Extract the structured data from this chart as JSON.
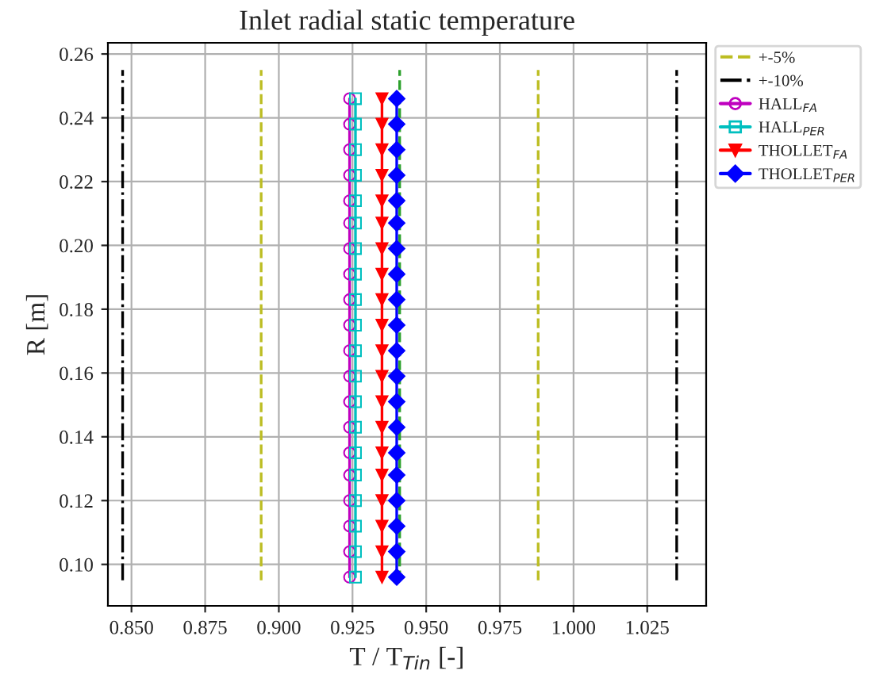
{
  "chart_data": {
    "type": "line",
    "title": "Inlet radial static temperature",
    "xlabel": "T / T$_{Tin}$ [-]",
    "ylabel": "R [m]",
    "xlim": [
      0.842,
      1.045
    ],
    "xticks": [
      {
        "value": 0.85,
        "label": "0.850"
      },
      {
        "value": 0.875,
        "label": "0.875"
      },
      {
        "value": 0.9,
        "label": "0.900"
      },
      {
        "value": 0.925,
        "label": "0.925"
      },
      {
        "value": 0.95,
        "label": "0.950"
      },
      {
        "value": 0.975,
        "label": "0.975"
      },
      {
        "value": 1.0,
        "label": "1.000"
      },
      {
        "value": 1.025,
        "label": "1.025"
      }
    ],
    "ylim": [
      0.087,
      0.2635
    ],
    "yticks": [
      {
        "value": 0.1,
        "label": "0.10"
      },
      {
        "value": 0.12,
        "label": "0.12"
      },
      {
        "value": 0.14,
        "label": "0.14"
      },
      {
        "value": 0.16,
        "label": "0.16"
      },
      {
        "value": 0.18,
        "label": "0.18"
      },
      {
        "value": 0.2,
        "label": "0.20"
      },
      {
        "value": 0.22,
        "label": "0.22"
      },
      {
        "value": 0.24,
        "label": "0.24"
      },
      {
        "value": 0.26,
        "label": "0.26"
      }
    ],
    "grid": true,
    "legend": "top right",
    "series": [
      {
        "color": "#2ca02c",
        "line_style": "dashed",
        "marker": "none",
        "x": [
          0.941,
          0.941
        ],
        "values": [
          0.095,
          0.255
        ]
      },
      {
        "name": "+-5%",
        "color": "#bcbd22",
        "line_style": "dashed",
        "marker": "none",
        "x": [
          0.894,
          0.894
        ],
        "values": [
          0.095,
          0.255
        ]
      },
      {
        "color": "#bcbd22",
        "line_style": "dashed",
        "marker": "none",
        "x": [
          0.988,
          0.988
        ],
        "values": [
          0.095,
          0.255
        ]
      },
      {
        "name": "+-10%",
        "color": "#000000",
        "line_style": "dashdot",
        "marker": "none",
        "x": [
          0.847,
          0.847
        ],
        "values": [
          0.095,
          0.255
        ]
      },
      {
        "color": "#000000",
        "line_style": "dashdot",
        "marker": "none",
        "x": [
          1.035,
          1.035
        ],
        "values": [
          0.095,
          0.255
        ]
      },
      {
        "name": "HALL$_{FA}$",
        "color": "#bf00bf",
        "line_style": "solid",
        "marker": "circle",
        "x": [
          0.924,
          0.924,
          0.924,
          0.924,
          0.924,
          0.924,
          0.924,
          0.924,
          0.924,
          0.924,
          0.924,
          0.924,
          0.924,
          0.924,
          0.924,
          0.924,
          0.924,
          0.924,
          0.924,
          0.924
        ],
        "values": [
          0.096,
          0.104,
          0.112,
          0.12,
          0.128,
          0.135,
          0.143,
          0.151,
          0.159,
          0.167,
          0.175,
          0.183,
          0.191,
          0.199,
          0.207,
          0.214,
          0.222,
          0.23,
          0.238,
          0.246
        ]
      },
      {
        "name": "HALL$_{PER}$",
        "color": "#00bfbf",
        "line_style": "solid",
        "marker": "square",
        "x": [
          0.926,
          0.926,
          0.926,
          0.926,
          0.926,
          0.926,
          0.926,
          0.926,
          0.926,
          0.926,
          0.926,
          0.926,
          0.926,
          0.926,
          0.926,
          0.926,
          0.926,
          0.926,
          0.926,
          0.926
        ],
        "values": [
          0.096,
          0.104,
          0.112,
          0.12,
          0.128,
          0.135,
          0.143,
          0.151,
          0.159,
          0.167,
          0.175,
          0.183,
          0.191,
          0.199,
          0.207,
          0.214,
          0.222,
          0.23,
          0.238,
          0.246
        ]
      },
      {
        "name": "THOLLET$_{FA}$",
        "color": "#ff0000",
        "line_style": "solid",
        "marker": "triangle",
        "x": [
          0.935,
          0.935,
          0.935,
          0.935,
          0.935,
          0.935,
          0.935,
          0.935,
          0.935,
          0.935,
          0.935,
          0.935,
          0.935,
          0.935,
          0.935,
          0.935,
          0.935,
          0.935,
          0.935,
          0.935
        ],
        "values": [
          0.096,
          0.104,
          0.112,
          0.12,
          0.128,
          0.135,
          0.143,
          0.151,
          0.159,
          0.167,
          0.175,
          0.183,
          0.191,
          0.199,
          0.207,
          0.214,
          0.222,
          0.23,
          0.238,
          0.246
        ]
      },
      {
        "name": "THOLLET$_{PER}$",
        "color": "#0000ff",
        "line_style": "solid",
        "marker": "diamond",
        "x": [
          0.94,
          0.94,
          0.94,
          0.94,
          0.94,
          0.94,
          0.94,
          0.94,
          0.94,
          0.94,
          0.94,
          0.94,
          0.94,
          0.94,
          0.94,
          0.94,
          0.94,
          0.94,
          0.94,
          0.94
        ],
        "values": [
          0.096,
          0.104,
          0.112,
          0.12,
          0.128,
          0.135,
          0.143,
          0.151,
          0.159,
          0.167,
          0.175,
          0.183,
          0.191,
          0.199,
          0.207,
          0.214,
          0.222,
          0.23,
          0.238,
          0.246
        ]
      }
    ]
  }
}
